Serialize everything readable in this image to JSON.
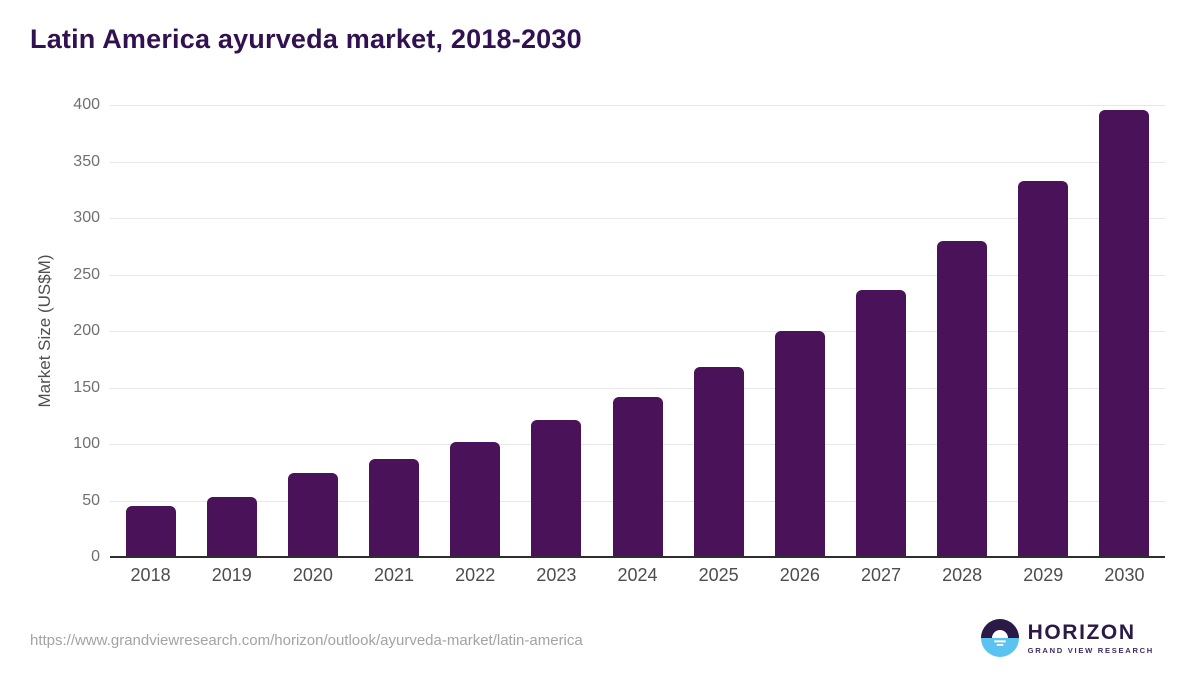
{
  "chart_data": {
    "type": "bar",
    "title": "Latin America ayurveda market, 2018-2030",
    "categories": [
      "2018",
      "2019",
      "2020",
      "2021",
      "2022",
      "2023",
      "2024",
      "2025",
      "2026",
      "2027",
      "2028",
      "2029",
      "2030"
    ],
    "values": [
      45,
      53,
      74,
      87,
      102,
      121,
      142,
      168,
      200,
      236,
      280,
      333,
      396
    ],
    "xlabel": "",
    "ylabel": "Market Size (US$M)",
    "ylim": [
      0,
      400
    ],
    "yticks": [
      0,
      50,
      100,
      150,
      200,
      250,
      300,
      350,
      400
    ],
    "grid": true,
    "legend": "none",
    "bar_color": "#4a1259",
    "title_color": "#311150"
  },
  "footer": {
    "source_url": "https://www.grandviewresearch.com/horizon/outlook/ayurveda-market/latin-america",
    "logo": {
      "wordmark": "HORIZON",
      "subtitle": "GRAND VIEW RESEARCH",
      "icon": "sunrise-circle-icon",
      "navy_color": "#2b1a45",
      "blue_color": "#5ac3ef"
    }
  }
}
